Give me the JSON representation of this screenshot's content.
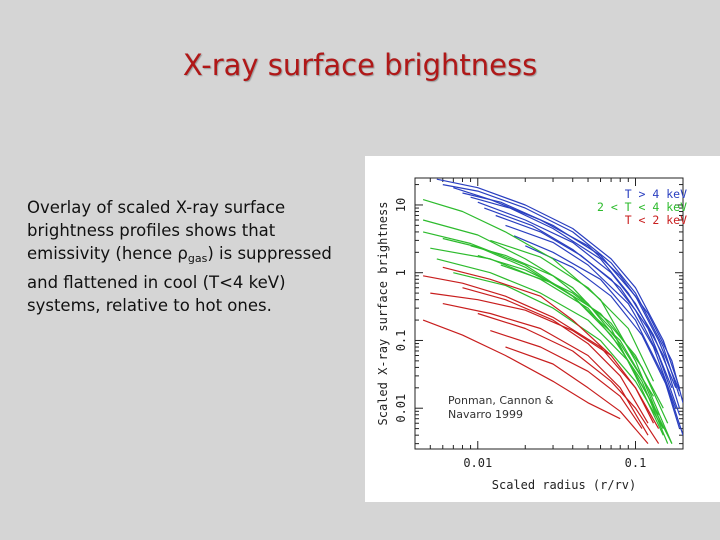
{
  "slide": {
    "title": "X-ray surface brightness",
    "caption_before": "Overlay of scaled X-ray surface brightness profiles shows that emissivity (hence ",
    "caption_rho": "ρ",
    "caption_sub": "gas",
    "caption_after": ") is suppressed and flattened in cool (T<4 keV) systems, relative to hot ones."
  },
  "chart_data": {
    "type": "line",
    "xlabel": "Scaled radius (r/rv)",
    "ylabel": "Scaled X-ray surface brightness",
    "x_scale": "log",
    "y_scale": "log",
    "xlim": [
      0.004,
      0.2
    ],
    "ylim": [
      0.0025,
      25
    ],
    "x_ticks": [
      0.01,
      0.1
    ],
    "x_tick_labels": [
      "0.01",
      "0.1"
    ],
    "y_ticks": [
      0.01,
      0.1,
      1,
      10
    ],
    "y_tick_labels": [
      "0.01",
      "0.1",
      "1",
      "10"
    ],
    "legend": [
      {
        "label": "T > 4 keV",
        "color": "#2a3fc0"
      },
      {
        "label": "2 < T < 4 keV",
        "color": "#2dbb2d"
      },
      {
        "label": "T < 2 keV",
        "color": "#c81e1e"
      }
    ],
    "legend_position": "top-right",
    "annotation": "Ponman, Cannon & Navarro 1999",
    "series": [
      {
        "group": 0,
        "x": [
          0.0055,
          0.01,
          0.02,
          0.04,
          0.07,
          0.1,
          0.15,
          0.19
        ],
        "y": [
          24,
          18,
          10,
          4.5,
          1.6,
          0.6,
          0.1,
          0.02
        ]
      },
      {
        "group": 0,
        "x": [
          0.006,
          0.01,
          0.02,
          0.04,
          0.07,
          0.1,
          0.15,
          0.19
        ],
        "y": [
          20,
          16,
          9,
          4,
          1.4,
          0.5,
          0.08,
          0.015
        ]
      },
      {
        "group": 0,
        "x": [
          0.007,
          0.012,
          0.025,
          0.05,
          0.08,
          0.12,
          0.17,
          0.2
        ],
        "y": [
          18,
          12,
          6,
          2.5,
          0.9,
          0.25,
          0.05,
          0.012
        ]
      },
      {
        "group": 0,
        "x": [
          0.008,
          0.014,
          0.03,
          0.06,
          0.1,
          0.14,
          0.19
        ],
        "y": [
          15,
          11,
          5,
          1.8,
          0.45,
          0.1,
          0.018
        ]
      },
      {
        "group": 0,
        "x": [
          0.009,
          0.016,
          0.03,
          0.06,
          0.09,
          0.13,
          0.18
        ],
        "y": [
          13,
          9,
          4.5,
          1.6,
          0.5,
          0.12,
          0.02
        ]
      },
      {
        "group": 0,
        "x": [
          0.01,
          0.02,
          0.04,
          0.07,
          0.1,
          0.15,
          0.19
        ],
        "y": [
          11,
          6,
          2.8,
          1.0,
          0.35,
          0.06,
          0.01
        ]
      },
      {
        "group": 0,
        "x": [
          0.011,
          0.022,
          0.04,
          0.07,
          0.1,
          0.14,
          0.19
        ],
        "y": [
          9,
          5,
          2.2,
          0.8,
          0.28,
          0.06,
          0.008
        ]
      },
      {
        "group": 0,
        "x": [
          0.013,
          0.025,
          0.045,
          0.08,
          0.12,
          0.17
        ],
        "y": [
          7,
          4,
          1.8,
          0.6,
          0.15,
          0.02
        ]
      },
      {
        "group": 0,
        "x": [
          0.015,
          0.03,
          0.05,
          0.09,
          0.13,
          0.18
        ],
        "y": [
          5,
          2.8,
          1.3,
          0.35,
          0.08,
          0.01
        ]
      },
      {
        "group": 0,
        "x": [
          0.017,
          0.03,
          0.06,
          0.1,
          0.15,
          0.19
        ],
        "y": [
          3.5,
          2.0,
          0.8,
          0.2,
          0.03,
          0.005
        ]
      },
      {
        "group": 0,
        "x": [
          0.02,
          0.04,
          0.07,
          0.11,
          0.16,
          0.2
        ],
        "y": [
          2.5,
          1.2,
          0.45,
          0.12,
          0.02,
          0.004
        ]
      },
      {
        "group": 1,
        "x": [
          0.0045,
          0.008,
          0.015,
          0.03,
          0.06,
          0.1,
          0.15
        ],
        "y": [
          12,
          8,
          4,
          1.6,
          0.4,
          0.05,
          0.005
        ]
      },
      {
        "group": 1,
        "x": [
          0.0045,
          0.01,
          0.02,
          0.04,
          0.07,
          0.1,
          0.15
        ],
        "y": [
          6,
          3.6,
          1.6,
          0.6,
          0.15,
          0.03,
          0.004
        ]
      },
      {
        "group": 1,
        "x": [
          0.0045,
          0.009,
          0.02,
          0.04,
          0.07,
          0.11,
          0.16
        ],
        "y": [
          4,
          2.7,
          1.3,
          0.45,
          0.12,
          0.025,
          0.003
        ]
      },
      {
        "group": 1,
        "x": [
          0.005,
          0.012,
          0.025,
          0.05,
          0.08,
          0.12,
          0.17
        ],
        "y": [
          2.3,
          1.6,
          0.8,
          0.3,
          0.08,
          0.015,
          0.003
        ]
      },
      {
        "group": 1,
        "x": [
          0.0055,
          0.012,
          0.025,
          0.05,
          0.09,
          0.14
        ],
        "y": [
          1.6,
          1.0,
          0.5,
          0.2,
          0.05,
          0.008
        ]
      },
      {
        "group": 1,
        "x": [
          0.007,
          0.015,
          0.03,
          0.06,
          0.1,
          0.15
        ],
        "y": [
          1.0,
          0.65,
          0.3,
          0.1,
          0.025,
          0.005
        ]
      },
      {
        "group": 1,
        "x": [
          0.009,
          0.015,
          0.03,
          0.05,
          0.08,
          0.13
        ],
        "y": [
          2.5,
          1.8,
          0.9,
          0.35,
          0.09,
          0.015
        ]
      },
      {
        "group": 1,
        "x": [
          0.01,
          0.02,
          0.04,
          0.07,
          0.11,
          0.16
        ],
        "y": [
          1.8,
          1.1,
          0.5,
          0.18,
          0.04,
          0.006
        ]
      },
      {
        "group": 1,
        "x": [
          0.012,
          0.025,
          0.05,
          0.09,
          0.13
        ],
        "y": [
          3,
          1.7,
          0.6,
          0.15,
          0.025
        ]
      },
      {
        "group": 1,
        "x": [
          0.014,
          0.03,
          0.06,
          0.1,
          0.15
        ],
        "y": [
          1.3,
          0.7,
          0.25,
          0.06,
          0.01
        ]
      },
      {
        "group": 1,
        "x": [
          0.006,
          0.01,
          0.02,
          0.04,
          0.08,
          0.12,
          0.17
        ],
        "y": [
          3.2,
          2.4,
          1.2,
          0.45,
          0.1,
          0.02,
          0.003
        ]
      },
      {
        "group": 2,
        "x": [
          0.0045,
          0.008,
          0.015,
          0.03,
          0.06,
          0.1,
          0.14
        ],
        "y": [
          0.9,
          0.7,
          0.45,
          0.22,
          0.08,
          0.02,
          0.005
        ]
      },
      {
        "group": 2,
        "x": [
          0.005,
          0.01,
          0.02,
          0.04,
          0.07,
          0.1,
          0.13
        ],
        "y": [
          0.5,
          0.4,
          0.28,
          0.14,
          0.06,
          0.02,
          0.006
        ]
      },
      {
        "group": 2,
        "x": [
          0.006,
          0.012,
          0.025,
          0.05,
          0.08,
          0.12
        ],
        "y": [
          0.35,
          0.25,
          0.15,
          0.06,
          0.02,
          0.004
        ]
      },
      {
        "group": 2,
        "x": [
          0.0045,
          0.008,
          0.015,
          0.03,
          0.05,
          0.08
        ],
        "y": [
          0.2,
          0.12,
          0.06,
          0.025,
          0.012,
          0.007
        ]
      },
      {
        "group": 2,
        "x": [
          0.008,
          0.015,
          0.03,
          0.05,
          0.08,
          0.12
        ],
        "y": [
          0.6,
          0.4,
          0.2,
          0.09,
          0.03,
          0.006
        ]
      },
      {
        "group": 2,
        "x": [
          0.01,
          0.02,
          0.04,
          0.07,
          0.1,
          0.14
        ],
        "y": [
          0.25,
          0.15,
          0.07,
          0.025,
          0.01,
          0.003
        ]
      },
      {
        "group": 2,
        "x": [
          0.012,
          0.025,
          0.05,
          0.08,
          0.11
        ],
        "y": [
          0.14,
          0.08,
          0.035,
          0.015,
          0.005
        ]
      },
      {
        "group": 2,
        "x": [
          0.015,
          0.03,
          0.05,
          0.08,
          0.12
        ],
        "y": [
          0.08,
          0.045,
          0.02,
          0.009,
          0.003
        ]
      },
      {
        "group": 2,
        "x": [
          0.006,
          0.012,
          0.025,
          0.04,
          0.07
        ],
        "y": [
          1.2,
          0.8,
          0.45,
          0.2,
          0.06
        ]
      }
    ]
  }
}
